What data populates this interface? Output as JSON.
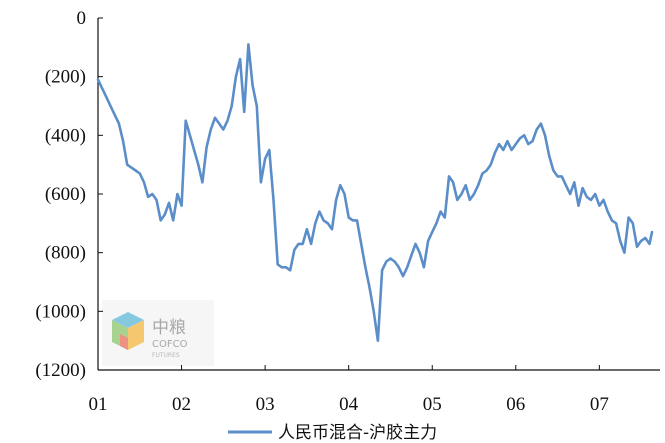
{
  "chart_data": {
    "type": "line",
    "title": "",
    "xlabel": "",
    "ylabel": "",
    "ylim": [
      -1200,
      0
    ],
    "y_ticks": [
      0,
      -200,
      -400,
      -600,
      -800,
      -1000,
      -1200
    ],
    "y_tick_labels": [
      "0",
      "(200)",
      "(400)",
      "(600)",
      "(800)",
      "(1000)",
      "(1200)"
    ],
    "x_ticks": [
      1,
      2,
      3,
      4,
      5,
      6,
      7
    ],
    "x_tick_labels": [
      "01",
      "02",
      "03",
      "04",
      "05",
      "06",
      "07"
    ],
    "xlim": [
      1,
      7.63
    ],
    "grid": false,
    "legend_position": "bottom",
    "series": [
      {
        "name": "人民币混合-沪胶主力",
        "color": "#5b8ec9",
        "x": [
          1.0,
          1.05,
          1.1,
          1.15,
          1.2,
          1.25,
          1.3,
          1.35,
          1.4,
          1.45,
          1.5,
          1.55,
          1.6,
          1.65,
          1.7,
          1.75,
          1.8,
          1.85,
          1.9,
          1.95,
          2.0,
          2.05,
          2.1,
          2.15,
          2.2,
          2.25,
          2.3,
          2.35,
          2.4,
          2.45,
          2.5,
          2.55,
          2.6,
          2.65,
          2.7,
          2.75,
          2.8,
          2.85,
          2.9,
          2.95,
          3.0,
          3.05,
          3.1,
          3.15,
          3.2,
          3.25,
          3.3,
          3.35,
          3.4,
          3.45,
          3.5,
          3.55,
          3.6,
          3.65,
          3.7,
          3.75,
          3.8,
          3.85,
          3.9,
          3.95,
          4.0,
          4.05,
          4.1,
          4.15,
          4.2,
          4.25,
          4.3,
          4.35,
          4.4,
          4.45,
          4.5,
          4.55,
          4.6,
          4.65,
          4.7,
          4.75,
          4.8,
          4.85,
          4.9,
          4.95,
          5.0,
          5.05,
          5.1,
          5.15,
          5.2,
          5.25,
          5.3,
          5.35,
          5.4,
          5.45,
          5.5,
          5.55,
          5.6,
          5.65,
          5.7,
          5.75,
          5.8,
          5.85,
          5.9,
          5.95,
          6.0,
          6.05,
          6.1,
          6.15,
          6.2,
          6.25,
          6.3,
          6.35,
          6.4,
          6.45,
          6.5,
          6.55,
          6.6,
          6.65,
          6.7,
          6.75,
          6.8,
          6.85,
          6.9,
          6.95,
          7.0,
          7.05,
          7.1,
          7.15,
          7.2,
          7.25,
          7.3,
          7.35,
          7.4,
          7.45,
          7.5,
          7.55,
          7.6,
          7.63
        ],
        "values": [
          -210,
          -240,
          -270,
          -300,
          -330,
          -360,
          -420,
          -500,
          -510,
          -520,
          -530,
          -560,
          -610,
          -600,
          -620,
          -690,
          -670,
          -630,
          -690,
          -600,
          -640,
          -350,
          -400,
          -450,
          -500,
          -560,
          -440,
          -380,
          -340,
          -360,
          -380,
          -350,
          -300,
          -200,
          -140,
          -320,
          -90,
          -230,
          -300,
          -560,
          -480,
          -450,
          -620,
          -840,
          -850,
          -850,
          -860,
          -790,
          -770,
          -770,
          -720,
          -770,
          -700,
          -660,
          -690,
          -700,
          -720,
          -620,
          -570,
          -600,
          -680,
          -690,
          -690,
          -770,
          -850,
          -920,
          -1000,
          -1100,
          -860,
          -830,
          -820,
          -830,
          -850,
          -880,
          -850,
          -810,
          -770,
          -800,
          -850,
          -760,
          -730,
          -700,
          -660,
          -680,
          -540,
          -560,
          -620,
          -600,
          -570,
          -620,
          -600,
          -570,
          -530,
          -520,
          -500,
          -460,
          -430,
          -450,
          -420,
          -450,
          -430,
          -410,
          -400,
          -430,
          -420,
          -380,
          -360,
          -400,
          -470,
          -520,
          -540,
          -540,
          -570,
          -600,
          -560,
          -640,
          -580,
          -610,
          -620,
          -600,
          -640,
          -620,
          -660,
          -690,
          -700,
          -760,
          -800,
          -680,
          -700,
          -780,
          -760,
          -750,
          -770,
          -730
        ]
      }
    ]
  },
  "watermark": {
    "brand_cn": "中粮",
    "brand_en": "COFCO",
    "subtitle": "FUTURES"
  }
}
